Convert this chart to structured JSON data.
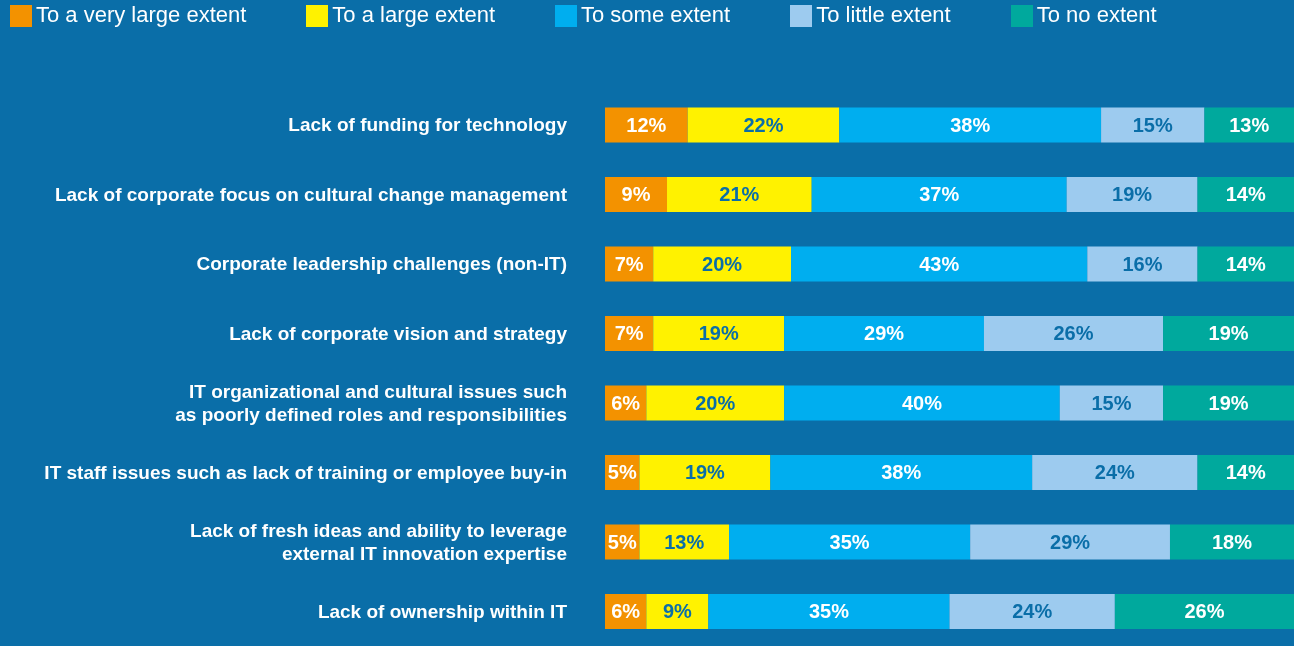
{
  "chart_data": {
    "type": "bar",
    "orientation": "horizontal",
    "stacked": true,
    "legend": "top",
    "grid": false,
    "categories": [
      "Lack of funding for technology",
      "Lack of corporate focus on cultural change management",
      "Corporate leadership challenges (non-IT)",
      "Lack of corporate vision and strategy",
      "IT organizational and cultural issues such\nas poorly defined roles and responsibilities",
      "IT staff issues such as lack of training or employee buy-in",
      "Lack of fresh ideas and ability to leverage\nexternal IT innovation expertise",
      "Lack of ownership within IT"
    ],
    "series": [
      {
        "name": "To a very large extent",
        "color": "#f39200",
        "values": [
          12,
          9,
          7,
          7,
          6,
          5,
          5,
          6
        ],
        "value_labels": [
          "12%",
          "9%",
          "7%",
          "7%",
          "6%",
          "5%",
          "5%",
          "6%"
        ]
      },
      {
        "name": "To a large extent",
        "color": "#fff200",
        "values": [
          22,
          21,
          20,
          19,
          20,
          19,
          13,
          9
        ],
        "value_labels": [
          "22%",
          "21%",
          "20%",
          "19%",
          "20%",
          "19%",
          "13%",
          "9%"
        ]
      },
      {
        "name": "To some extent",
        "color": "#00aeef",
        "values": [
          38,
          37,
          43,
          29,
          40,
          38,
          35,
          35
        ],
        "value_labels": [
          "38%",
          "37%",
          "43%",
          "29%",
          "40%",
          "38%",
          "35%",
          "35%"
        ]
      },
      {
        "name": "To little extent",
        "color": "#9dcbef",
        "values": [
          15,
          19,
          16,
          26,
          15,
          24,
          29,
          24
        ],
        "value_labels": [
          "15%",
          "19%",
          "16%",
          "26%",
          "15%",
          "24%",
          "29%",
          "24%"
        ]
      },
      {
        "name": "To no extent",
        "color": "#00a99d",
        "values": [
          13,
          14,
          14,
          19,
          19,
          14,
          18,
          26
        ],
        "value_labels": [
          "13%",
          "14%",
          "14%",
          "19%",
          "19%",
          "14%",
          "18%",
          "26%"
        ]
      }
    ]
  }
}
